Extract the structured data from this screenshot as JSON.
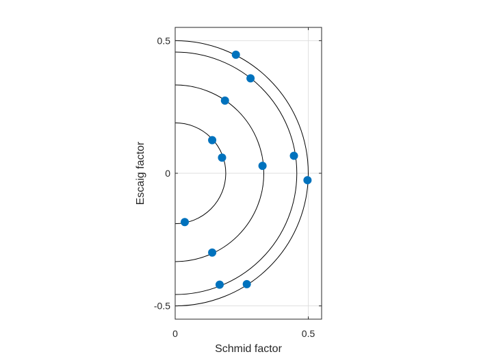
{
  "chart_data": {
    "type": "scatter",
    "title": "",
    "xlabel": "Schmid factor",
    "ylabel": "Escaig factor",
    "xlim": [
      0,
      0.55
    ],
    "ylim": [
      -0.55,
      0.55
    ],
    "xticks": [
      {
        "value": 0,
        "label": "0"
      },
      {
        "value": 0.5,
        "label": "0.5"
      }
    ],
    "yticks": [
      {
        "value": -0.5,
        "label": "-0.5"
      },
      {
        "value": 0,
        "label": "0"
      },
      {
        "value": 0.5,
        "label": "0.5"
      }
    ],
    "grid": true,
    "box": true,
    "series": [
      {
        "marker_color": "#0072BD",
        "points": [
          {
            "x": 0.228,
            "y": 0.447
          },
          {
            "x": 0.283,
            "y": 0.358
          },
          {
            "x": 0.187,
            "y": 0.274
          },
          {
            "x": 0.139,
            "y": 0.125
          },
          {
            "x": 0.176,
            "y": 0.059
          },
          {
            "x": 0.328,
            "y": 0.028
          },
          {
            "x": 0.446,
            "y": 0.066
          },
          {
            "x": 0.497,
            "y": -0.026
          },
          {
            "x": 0.036,
            "y": -0.184
          },
          {
            "x": 0.139,
            "y": -0.299
          },
          {
            "x": 0.167,
            "y": -0.42
          },
          {
            "x": 0.269,
            "y": -0.418
          }
        ]
      }
    ],
    "reference_arcs": [
      {
        "radius": 0.19,
        "color": "#000000"
      },
      {
        "radius": 0.333,
        "color": "#000000"
      },
      {
        "radius": 0.457,
        "color": "#000000"
      },
      {
        "radius": 0.5,
        "color": "#000000"
      }
    ],
    "colors": {
      "axis": "#262626",
      "grid": "#dfdfdf",
      "arc": "#000000",
      "marker": "#0072BD"
    }
  }
}
